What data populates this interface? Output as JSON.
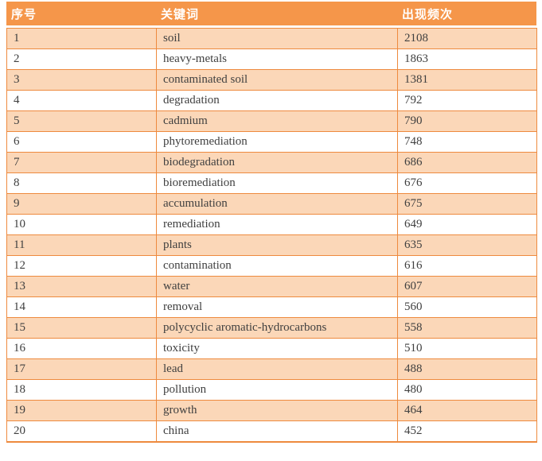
{
  "table": {
    "headers": [
      {
        "label": "序号"
      },
      {
        "label": "关键词"
      },
      {
        "label": "出现频次"
      }
    ],
    "rows": [
      {
        "index": "1",
        "keyword": "soil",
        "frequency": "2108"
      },
      {
        "index": "2",
        "keyword": "heavy-metals",
        "frequency": "1863"
      },
      {
        "index": "3",
        "keyword": "contaminated soil",
        "frequency": "1381"
      },
      {
        "index": "4",
        "keyword": "degradation",
        "frequency": "792"
      },
      {
        "index": "5",
        "keyword": "cadmium",
        "frequency": "790"
      },
      {
        "index": "6",
        "keyword": "phytoremediation",
        "frequency": "748"
      },
      {
        "index": "7",
        "keyword": "biodegradation",
        "frequency": "686"
      },
      {
        "index": "8",
        "keyword": "bioremediation",
        "frequency": "676"
      },
      {
        "index": "9",
        "keyword": "accumulation",
        "frequency": "675"
      },
      {
        "index": "10",
        "keyword": "remediation",
        "frequency": "649"
      },
      {
        "index": "11",
        "keyword": "plants",
        "frequency": "635"
      },
      {
        "index": "12",
        "keyword": "contamination",
        "frequency": "616"
      },
      {
        "index": "13",
        "keyword": "water",
        "frequency": "607"
      },
      {
        "index": "14",
        "keyword": "removal",
        "frequency": "560"
      },
      {
        "index": "15",
        "keyword": "polycyclic aromatic-hydrocarbons",
        "frequency": "558"
      },
      {
        "index": "16",
        "keyword": "toxicity",
        "frequency": "510"
      },
      {
        "index": "17",
        "keyword": "lead",
        "frequency": "488"
      },
      {
        "index": "18",
        "keyword": "pollution",
        "frequency": "480"
      },
      {
        "index": "19",
        "keyword": "growth",
        "frequency": "464"
      },
      {
        "index": "20",
        "keyword": "china",
        "frequency": "452"
      }
    ],
    "colors": {
      "header_bg": "#F5964A",
      "row_alt_bg": "#FBD7B8",
      "row_bg": "#FFFFFF",
      "border": "#EE8A3E",
      "header_text": "#FFFFFF",
      "body_text": "#404040"
    }
  },
  "chart_data": {
    "type": "table",
    "title": "",
    "columns": [
      "序号",
      "关键词",
      "出现频次"
    ],
    "categories": [
      "soil",
      "heavy-metals",
      "contaminated soil",
      "degradation",
      "cadmium",
      "phytoremediation",
      "biodegradation",
      "bioremediation",
      "accumulation",
      "remediation",
      "plants",
      "contamination",
      "water",
      "removal",
      "polycyclic aromatic-hydrocarbons",
      "toxicity",
      "lead",
      "pollution",
      "growth",
      "china"
    ],
    "values": [
      2108,
      1863,
      1381,
      792,
      790,
      748,
      686,
      676,
      675,
      649,
      635,
      616,
      607,
      560,
      558,
      510,
      488,
      480,
      464,
      452
    ]
  }
}
